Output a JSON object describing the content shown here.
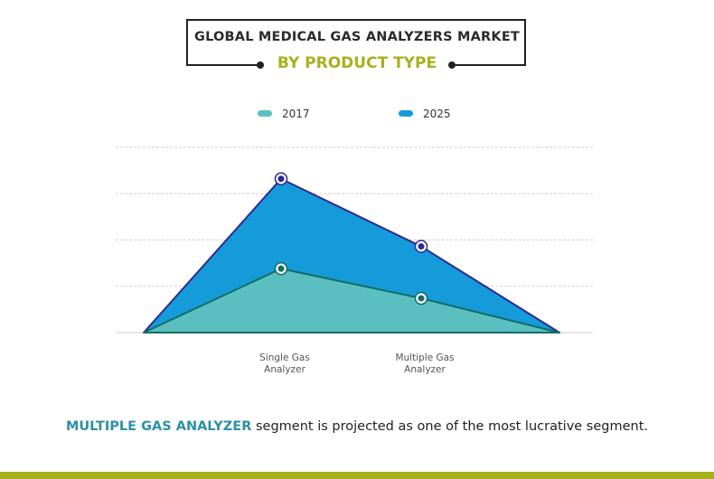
{
  "chart_data": {
    "type": "area",
    "title": "GLOBAL MEDICAL GAS ANALYZERS MARKET",
    "subtitle": "BY PRODUCT TYPE",
    "categories": [
      "",
      "Single Gas Analyzer",
      "Multiple Gas Analyzer",
      ""
    ],
    "category_lines": [
      [
        "",
        ""
      ],
      [
        "Single Gas",
        "Analyzer"
      ],
      [
        "Multiple Gas",
        "Analyzer"
      ],
      [
        "",
        ""
      ]
    ],
    "series": [
      {
        "name": "2025",
        "values": [
          0,
          3.32,
          1.86,
          0
        ],
        "fill": "#159bd9",
        "stroke": "#2d2a8f",
        "marker": "#2d2a8f"
      },
      {
        "name": "2017",
        "values": [
          0,
          1.38,
          0.74,
          0
        ],
        "fill": "#5bbfc1",
        "stroke": "#0f6e63",
        "marker": "#0f6e63"
      }
    ],
    "legend": [
      {
        "name": "2017",
        "color": "#5bbfc1"
      },
      {
        "name": "2025",
        "color": "#159bd9"
      }
    ],
    "legend_position": "top-center",
    "ylim": [
      0,
      4
    ],
    "grid": true,
    "xlabel": "",
    "ylabel": ""
  },
  "footer": {
    "highlight": "MULTIPLE GAS ANALYZER",
    "text": " segment is projected as one of the most lucrative segment."
  }
}
